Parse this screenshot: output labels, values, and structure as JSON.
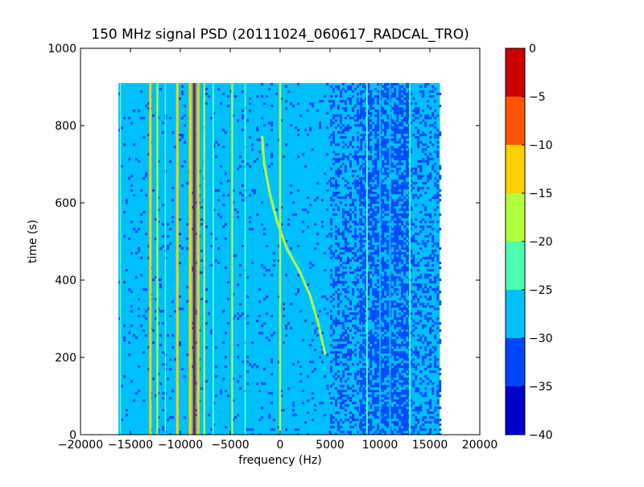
{
  "chart_data": {
    "type": "heatmap",
    "title": "150 MHz signal PSD (20111024_060617_RADCAL_TRO)",
    "xlabel": "frequency (Hz)",
    "ylabel": "time (s)",
    "xlim": [
      -20000,
      20000
    ],
    "ylim": [
      0,
      1000
    ],
    "x_ticks": [
      -20000,
      -15000,
      -10000,
      -5000,
      0,
      5000,
      10000,
      15000,
      20000
    ],
    "x_tick_labels": [
      "−20000",
      "−15000",
      "−10000",
      "−5000",
      "0",
      "5000",
      "10000",
      "15000",
      "20000"
    ],
    "y_ticks": [
      0,
      200,
      400,
      600,
      800,
      1000
    ],
    "y_tick_labels": [
      "0",
      "200",
      "400",
      "600",
      "800",
      "1000"
    ],
    "data_extent": {
      "freq_min": -16200,
      "freq_max": 16000,
      "time_min": 0,
      "time_max": 910
    },
    "background_level": -27.5,
    "background_color": "#00bfff",
    "colorbar": {
      "min": -40,
      "max": 0,
      "levels": [
        {
          "from": -40,
          "to": -35,
          "color": "#0000cd"
        },
        {
          "from": -35,
          "to": -30,
          "color": "#0044ff"
        },
        {
          "from": -30,
          "to": -25,
          "color": "#00bfff"
        },
        {
          "from": -25,
          "to": -20,
          "color": "#4dffb0"
        },
        {
          "from": -20,
          "to": -15,
          "color": "#b2ff3c"
        },
        {
          "from": -15,
          "to": -10,
          "color": "#ffd000"
        },
        {
          "from": -10,
          "to": -5,
          "color": "#ff5500"
        },
        {
          "from": -5,
          "to": 0,
          "color": "#cc0000"
        }
      ],
      "ticks": [
        0,
        -5,
        -10,
        -15,
        -20,
        -25,
        -30,
        -35,
        -40
      ],
      "tick_labels": [
        "0",
        "−5",
        "−10",
        "−15",
        "−20",
        "−25",
        "−30",
        "−35",
        "−40"
      ]
    },
    "noise_regions": [
      {
        "freq_start": -16200,
        "freq_end": 5000,
        "level": -32.5,
        "density": 0.05
      },
      {
        "freq_start": 5000,
        "freq_end": 8000,
        "level": -32.5,
        "density": 0.35
      },
      {
        "freq_start": 8000,
        "freq_end": 13000,
        "level": -32.5,
        "density": 0.6
      },
      {
        "freq_start": 13000,
        "freq_end": 16000,
        "level": -32.5,
        "density": 0.3
      }
    ],
    "series": [
      {
        "freq": -16000,
        "level": -22.5,
        "width": 120
      },
      {
        "freq": -13000,
        "level": -12.5,
        "width": 250
      },
      {
        "freq": -12300,
        "level": -17.5,
        "width": 180
      },
      {
        "freq": -11500,
        "level": -22.5,
        "width": 120
      },
      {
        "freq": -10300,
        "level": -12.5,
        "width": 250
      },
      {
        "freq": -9000,
        "level": -12.5,
        "width": 300
      },
      {
        "freq": -8600,
        "level": -2.5,
        "width": 200
      },
      {
        "freq": -8200,
        "level": -12.5,
        "width": 250
      },
      {
        "freq": -7600,
        "level": -17.5,
        "width": 180
      },
      {
        "freq": -6700,
        "level": -22.5,
        "width": 150
      },
      {
        "freq": -4800,
        "level": -17.5,
        "width": 180
      },
      {
        "freq": -3500,
        "level": -22.5,
        "width": 150
      },
      {
        "freq": 0,
        "level": -17.5,
        "width": 200
      },
      {
        "freq": 8700,
        "level": -22.5,
        "width": 150
      },
      {
        "freq": 10000,
        "level": -27.5,
        "width": 150
      },
      {
        "freq": 11000,
        "level": -27.5,
        "width": 150
      },
      {
        "freq": 13000,
        "level": -22.5,
        "width": 150
      }
    ],
    "drifting_signal": {
      "level": -17.5,
      "points": [
        {
          "freq": -1800,
          "time": 770
        },
        {
          "freq": -1600,
          "time": 700
        },
        {
          "freq": -1000,
          "time": 620
        },
        {
          "freq": -300,
          "time": 550
        },
        {
          "freq": 700,
          "time": 480
        },
        {
          "freq": 2000,
          "time": 420
        },
        {
          "freq": 3000,
          "time": 360
        },
        {
          "freq": 3800,
          "time": 290
        },
        {
          "freq": 4500,
          "time": 210
        }
      ]
    }
  }
}
